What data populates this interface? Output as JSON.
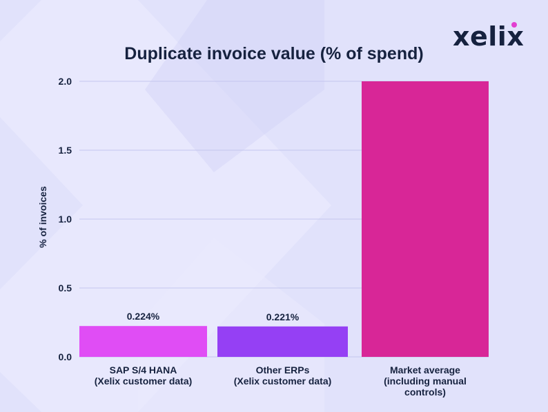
{
  "brand": {
    "logo_text": "xelix",
    "logo_dot_color": "#e23fd1",
    "background": "#e1e2fb",
    "text_color": "#16223f"
  },
  "chart_data": {
    "type": "bar",
    "title": "Duplicate invoice value (% of spend)",
    "xlabel": "",
    "ylabel": "% of invoices",
    "ylim": [
      0,
      2.0
    ],
    "yticks": [
      "0.0",
      "0.5",
      "1.0",
      "1.5",
      "2.0"
    ],
    "grid": true,
    "categories": [
      [
        "SAP S/4 HANA",
        "(Xelix customer data)"
      ],
      [
        "Other ERPs",
        "(Xelix customer data)"
      ],
      [
        "Market average",
        "(including manual",
        "controls)"
      ]
    ],
    "values": [
      0.224,
      0.221,
      2.0
    ],
    "data_labels": [
      "0.224%",
      "0.221%",
      ""
    ],
    "colors": [
      "#e04df5",
      "#9540f4",
      "#d82697"
    ]
  }
}
